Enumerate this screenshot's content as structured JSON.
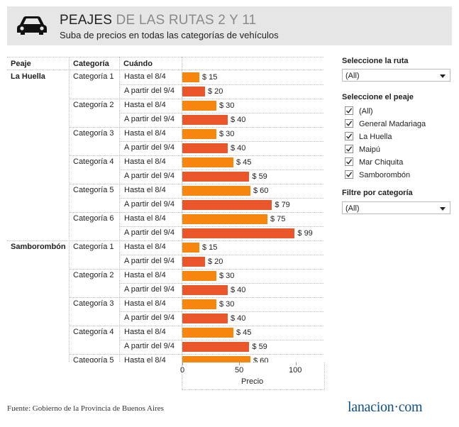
{
  "header": {
    "title_main": "PEAJES",
    "title_rest": " DE LAS RUTAS 2 Y 11",
    "subtitle": "Suba de precios en todas las categorías de vehículos"
  },
  "table": {
    "col_peaje": "Peaje",
    "col_categoria": "Categoría",
    "col_cuando": "Cuándo"
  },
  "chart_data": {
    "type": "bar",
    "orientation": "horizontal",
    "xlabel": "Precio",
    "xlim": [
      0,
      125
    ],
    "xticks": [
      "0",
      "50",
      "100"
    ],
    "colors": {
      "before": "#f7860f",
      "after": "#e8562a"
    },
    "value_prefix": "$ ",
    "groups": [
      {
        "peaje": "La Huella",
        "categorias": [
          {
            "categoria": "Categoría 1",
            "rows": [
              {
                "cuando": "Hasta el 8/4",
                "value": 15
              },
              {
                "cuando": "A partir del 9/4",
                "value": 20
              }
            ]
          },
          {
            "categoria": "Categoría 2",
            "rows": [
              {
                "cuando": "Hasta el 8/4",
                "value": 30
              },
              {
                "cuando": "A partir del 9/4",
                "value": 40
              }
            ]
          },
          {
            "categoria": "Categoría 3",
            "rows": [
              {
                "cuando": "Hasta el 8/4",
                "value": 30
              },
              {
                "cuando": "A partir del 9/4",
                "value": 40
              }
            ]
          },
          {
            "categoria": "Categoría 4",
            "rows": [
              {
                "cuando": "Hasta el 8/4",
                "value": 45
              },
              {
                "cuando": "A partir del 9/4",
                "value": 59
              }
            ]
          },
          {
            "categoria": "Categoría 5",
            "rows": [
              {
                "cuando": "Hasta el 8/4",
                "value": 60
              },
              {
                "cuando": "A partir del 9/4",
                "value": 79
              }
            ]
          },
          {
            "categoria": "Categoría 6",
            "rows": [
              {
                "cuando": "Hasta el 8/4",
                "value": 75
              },
              {
                "cuando": "A partir del 9/4",
                "value": 99
              }
            ]
          }
        ]
      },
      {
        "peaje": "Samborombón",
        "categorias": [
          {
            "categoria": "Categoría 1",
            "rows": [
              {
                "cuando": "Hasta el 8/4",
                "value": 15
              },
              {
                "cuando": "A partir del 9/4",
                "value": 20
              }
            ]
          },
          {
            "categoria": "Categoría 2",
            "rows": [
              {
                "cuando": "Hasta el 8/4",
                "value": 30
              },
              {
                "cuando": "A partir del 9/4",
                "value": 40
              }
            ]
          },
          {
            "categoria": "Categoría 3",
            "rows": [
              {
                "cuando": "Hasta el 8/4",
                "value": 30
              },
              {
                "cuando": "A partir del 9/4",
                "value": 40
              }
            ]
          },
          {
            "categoria": "Categoría 4",
            "rows": [
              {
                "cuando": "Hasta el 8/4",
                "value": 45
              },
              {
                "cuando": "A partir del 9/4",
                "value": 59
              }
            ]
          },
          {
            "categoria": "Categoría 5",
            "rows": [
              {
                "cuando": "Hasta el 8/4",
                "value": 60
              }
            ]
          }
        ]
      }
    ]
  },
  "filters": {
    "ruta_label": "Seleccione la ruta",
    "ruta_value": "(All)",
    "peaje_label": "Seleccione el peaje",
    "peaje_options": [
      {
        "label": "(All)",
        "checked": true
      },
      {
        "label": "General Madariaga",
        "checked": true
      },
      {
        "label": "La Huella",
        "checked": true
      },
      {
        "label": "Maipú",
        "checked": true
      },
      {
        "label": "Mar Chiquita",
        "checked": true
      },
      {
        "label": "Samborombón",
        "checked": true
      }
    ],
    "categoria_label": "Filtre por categoría",
    "categoria_value": "(All)"
  },
  "footer": {
    "source": "Fuente: Gobierno de la Provincia de Buenos Aires",
    "logo": "lanacion·com"
  }
}
